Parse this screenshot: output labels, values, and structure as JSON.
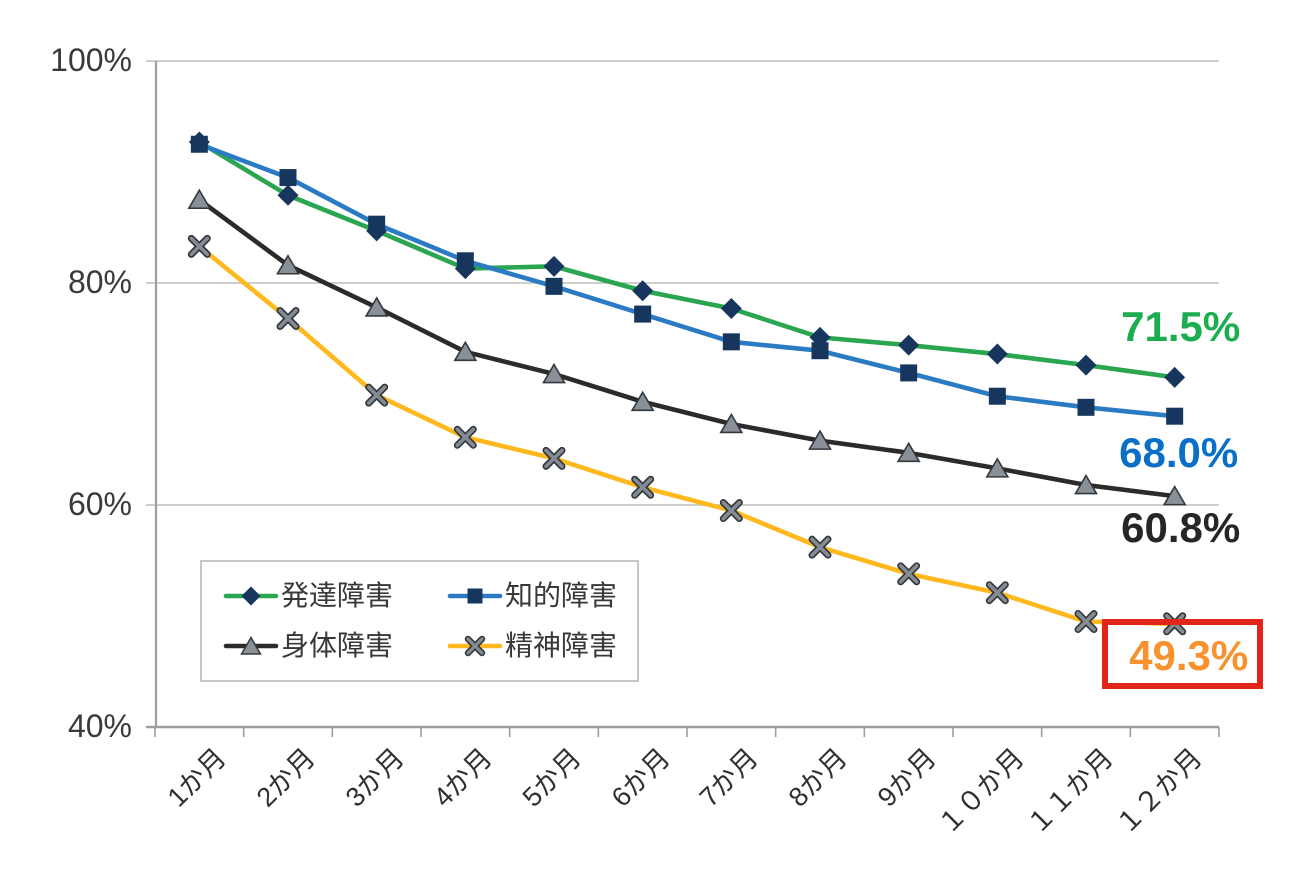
{
  "chart_data": {
    "type": "line",
    "title": "",
    "categories": [
      "1か月",
      "2か月",
      "3か月",
      "4か月",
      "5か月",
      "6か月",
      "7か月",
      "8か月",
      "9か月",
      "１０か月",
      "１１か月",
      "１２か月"
    ],
    "x_tick_rotation_deg": 45,
    "y_axis": {
      "min": 40,
      "max": 100,
      "tick_values": [
        100,
        80,
        60,
        40
      ],
      "tick_labels": [
        "100%",
        "80%",
        "60%",
        "40%"
      ]
    },
    "grid": true,
    "legend_position": "inside-bottom-left",
    "series": [
      {
        "key": "developmental",
        "name": "発達障害",
        "marker": "diamond",
        "line_color": "#29A64F",
        "marker_color": "#17365D",
        "values": [
          92.7,
          87.9,
          84.7,
          81.3,
          81.5,
          79.3,
          77.7,
          75.1,
          74.4,
          73.6,
          72.6,
          71.5
        ],
        "end_label": "71.5%",
        "end_label_color": "#1CAD51",
        "highlighted": false
      },
      {
        "key": "intellectual",
        "name": "知的障害",
        "marker": "square",
        "line_color": "#2B7AC4",
        "marker_color": "#17365D",
        "values": [
          92.5,
          89.5,
          85.3,
          82.0,
          79.7,
          77.2,
          74.7,
          73.9,
          71.9,
          69.8,
          68.8,
          68.0
        ],
        "end_label": "68.0%",
        "end_label_color": "#0A70C7",
        "highlighted": false
      },
      {
        "key": "physical",
        "name": "身体障害",
        "marker": "triangle",
        "line_color": "#2B2B2B",
        "marker_color": "#8A9097",
        "values": [
          87.5,
          81.6,
          77.8,
          73.8,
          71.8,
          69.3,
          67.3,
          65.8,
          64.7,
          63.3,
          61.8,
          60.8
        ],
        "end_label": "60.8%",
        "end_label_color": "#262626",
        "highlighted": false
      },
      {
        "key": "psychiatric",
        "name": "精神障害",
        "marker": "x",
        "line_color": "#FFB81E",
        "marker_color": "#858B93",
        "values": [
          83.3,
          76.8,
          69.9,
          66.1,
          64.2,
          61.6,
          59.5,
          56.2,
          53.8,
          52.1,
          49.5,
          49.3
        ],
        "end_label": "49.3%",
        "end_label_color": "#F8922E",
        "highlighted": true
      }
    ],
    "style": {
      "background": "#FFFFFF",
      "grid_color": "#BDBDBD",
      "axis_color": "#9E9E9E",
      "tick_label_color": "#3A3A3A",
      "marker_outline_color": "#33383E",
      "highlight_box_color": "#E1251B"
    }
  }
}
